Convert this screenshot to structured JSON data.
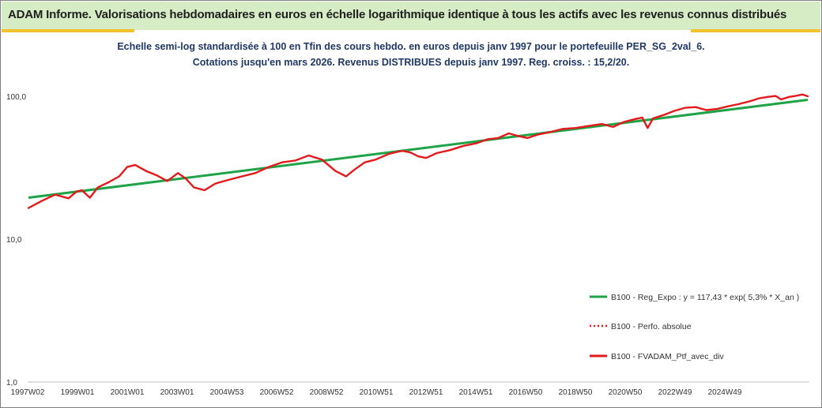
{
  "header": {
    "title": "ADAM Informe. Valorisations hebdomadaires en euros en échelle logarithmique identique à tous les actifs avec les revenus connus distribués"
  },
  "colors": {
    "banner_bg": "#d6ecc4",
    "accent": "#f2c22e",
    "subtitle": "#1f3864",
    "regression": "#1fa346",
    "performance": "#e31a1c"
  },
  "chart_data": {
    "type": "line",
    "title": "",
    "subtitle_lines": [
      "Echelle semi-log standardisée  à 100 en Tfin des cours hebdo.  en euros depuis janv 1997 pour le portefeuille PER_SG_2val_6.",
      "Cotations jusqu'en mars 2026. Revenus DISTRIBUES depuis janv 1997. Reg. croiss. : 15,2/20."
    ],
    "xlabel": "",
    "ylabel": "",
    "y_scale": "log",
    "ylim": [
      1,
      100
    ],
    "y_ticks": [
      "100,0",
      "10,0",
      "1,0"
    ],
    "x_ticks": [
      "1997W02",
      "1999W01",
      "2001W01",
      "2003W01",
      "2004W53",
      "2006W52",
      "2008W52",
      "2010W51",
      "2012W51",
      "2014W51",
      "2016W50",
      "2018W50",
      "2020W50",
      "2022W49",
      "2024W49"
    ],
    "x_range_years": [
      1997.0,
      2026.2
    ],
    "grid": false,
    "legend_position": "right",
    "series": [
      {
        "name": "B100 - Reg_Expo : y = 117,43 * exp( 5,3% *  X_an )",
        "style": "solid-green",
        "x": [
          1997.0,
          2026.2
        ],
        "values": [
          19.5,
          94.5
        ]
      },
      {
        "name": "B100 - Perfo. absolue",
        "style": "dotted-red",
        "x": [],
        "values": []
      },
      {
        "name": "B100 - FVADAM_Ptf_avec_div",
        "style": "solid-red",
        "x": [
          1997.0,
          1997.5,
          1998.0,
          1998.5,
          1998.8,
          1999.0,
          1999.3,
          1999.6,
          2000.0,
          2000.4,
          2000.7,
          2001.0,
          2001.4,
          2001.8,
          2002.2,
          2002.6,
          2002.9,
          2003.2,
          2003.6,
          2004.0,
          2004.5,
          2005.0,
          2005.5,
          2006.0,
          2006.5,
          2007.0,
          2007.5,
          2008.0,
          2008.5,
          2008.9,
          2009.2,
          2009.6,
          2010.0,
          2010.5,
          2011.0,
          2011.3,
          2011.6,
          2011.9,
          2012.3,
          2012.8,
          2013.3,
          2013.8,
          2014.2,
          2014.6,
          2015.0,
          2015.3,
          2015.7,
          2016.1,
          2016.6,
          2017.0,
          2017.5,
          2018.0,
          2018.5,
          2018.9,
          2019.3,
          2019.7,
          2020.0,
          2020.2,
          2020.4,
          2020.8,
          2021.2,
          2021.6,
          2022.0,
          2022.4,
          2022.8,
          2023.2,
          2023.6,
          2024.0,
          2024.4,
          2024.7,
          2025.0,
          2025.2,
          2025.5,
          2025.8,
          2026.0,
          2026.2
        ],
        "values": [
          16.5,
          18.5,
          20.5,
          19.3,
          21.5,
          22.0,
          19.5,
          23.0,
          25.0,
          27.5,
          32.0,
          33.0,
          30.0,
          28.0,
          25.5,
          29.0,
          26.5,
          23.0,
          22.0,
          24.5,
          26.0,
          27.5,
          29.0,
          32.0,
          34.5,
          35.5,
          38.5,
          36.0,
          30.0,
          27.5,
          30.5,
          34.5,
          36.0,
          39.5,
          41.5,
          40.5,
          38.0,
          37.0,
          40.0,
          42.0,
          45.0,
          47.0,
          50.0,
          51.0,
          55.0,
          53.0,
          51.0,
          54.0,
          56.5,
          59.0,
          60.0,
          62.0,
          64.0,
          61.0,
          66.0,
          69.0,
          71.0,
          60.0,
          70.0,
          74.0,
          79.0,
          83.0,
          84.0,
          80.0,
          81.5,
          85.0,
          88.0,
          92.0,
          97.0,
          99.0,
          100.5,
          95.0,
          99.0,
          101.0,
          103.0,
          100.0
        ]
      }
    ]
  }
}
